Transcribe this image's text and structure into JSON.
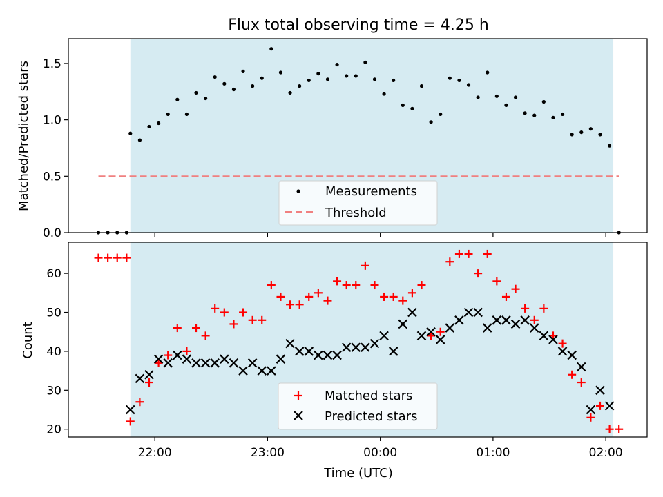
{
  "chart_data": [
    {
      "type": "scatter",
      "title": "Flux total observing time = 4.25 h",
      "ylabel": "Matched/Predicted stars",
      "xlabel": "",
      "xlim": [
        "21:14",
        "02:22"
      ],
      "ylim": [
        0,
        1.72
      ],
      "yticks": [
        "0.0",
        "0.5",
        "1.0",
        "1.5"
      ],
      "x_tick_labels": [],
      "observing_window": [
        "21:47",
        "02:04"
      ],
      "threshold": 0.5,
      "series": [
        {
          "name": "Measurements",
          "x": [
            "21:30",
            "21:35",
            "21:40",
            "21:45",
            "21:47",
            "21:52",
            "21:57",
            "22:02",
            "22:07",
            "22:12",
            "22:17",
            "22:22",
            "22:27",
            "22:32",
            "22:37",
            "22:42",
            "22:47",
            "22:52",
            "22:57",
            "23:02",
            "23:07",
            "23:12",
            "23:17",
            "23:22",
            "23:27",
            "23:32",
            "23:37",
            "23:42",
            "23:47",
            "23:52",
            "23:57",
            "00:02",
            "00:07",
            "00:12",
            "00:17",
            "00:22",
            "00:27",
            "00:32",
            "00:37",
            "00:42",
            "00:47",
            "00:52",
            "00:57",
            "01:02",
            "01:07",
            "01:12",
            "01:17",
            "01:22",
            "01:27",
            "01:32",
            "01:37",
            "01:42",
            "01:47",
            "01:52",
            "01:57",
            "02:02",
            "02:07"
          ],
          "y": [
            0,
            0,
            0,
            0,
            0.88,
            0.82,
            0.94,
            0.97,
            1.05,
            1.18,
            1.05,
            1.24,
            1.19,
            1.38,
            1.32,
            1.27,
            1.43,
            1.3,
            1.37,
            1.63,
            1.42,
            1.24,
            1.3,
            1.35,
            1.41,
            1.36,
            1.49,
            1.39,
            1.39,
            1.51,
            1.36,
            1.23,
            1.35,
            1.13,
            1.1,
            1.3,
            0.98,
            1.05,
            1.37,
            1.35,
            1.31,
            1.2,
            1.42,
            1.21,
            1.13,
            1.2,
            1.06,
            1.04,
            1.16,
            1.02,
            1.05,
            0.87,
            0.89,
            0.92,
            0.87,
            0.77,
            0
          ]
        }
      ],
      "threshold_series": {
        "name": "Threshold",
        "x": [
          "21:30",
          "02:07"
        ],
        "y": [
          0.5,
          0.5
        ]
      },
      "legend": "bottom-center",
      "colors": {
        "points": "#000000",
        "threshold": "#f08080",
        "window": "#add8e6"
      }
    },
    {
      "type": "scatter",
      "title": "",
      "xlabel": "Time (UTC)",
      "ylabel": "Count",
      "xlim": [
        "21:14",
        "02:22"
      ],
      "ylim": [
        18,
        68
      ],
      "yticks": [
        "20",
        "30",
        "40",
        "50",
        "60"
      ],
      "x_tick_labels": [
        "22:00",
        "23:00",
        "00:00",
        "01:00",
        "02:00"
      ],
      "observing_window": [
        "21:47",
        "02:04"
      ],
      "series": [
        {
          "name": "Matched stars",
          "marker": "plus",
          "x": [
            "21:30",
            "21:35",
            "21:40",
            "21:45",
            "21:47",
            "21:52",
            "21:57",
            "22:02",
            "22:07",
            "22:12",
            "22:17",
            "22:22",
            "22:27",
            "22:32",
            "22:37",
            "22:42",
            "22:47",
            "22:52",
            "22:57",
            "23:02",
            "23:07",
            "23:12",
            "23:17",
            "23:22",
            "23:27",
            "23:32",
            "23:37",
            "23:42",
            "23:47",
            "23:52",
            "23:57",
            "00:02",
            "00:07",
            "00:12",
            "00:17",
            "00:22",
            "00:27",
            "00:32",
            "00:37",
            "00:42",
            "00:47",
            "00:52",
            "00:57",
            "01:02",
            "01:07",
            "01:12",
            "01:17",
            "01:22",
            "01:27",
            "01:32",
            "01:37",
            "01:42",
            "01:47",
            "01:52",
            "01:57",
            "02:02",
            "02:07"
          ],
          "y": [
            64,
            64,
            64,
            64,
            22,
            27,
            32,
            37,
            39,
            46,
            40,
            46,
            44,
            51,
            50,
            47,
            50,
            48,
            48,
            57,
            54,
            52,
            52,
            54,
            55,
            53,
            58,
            57,
            57,
            62,
            57,
            54,
            54,
            53,
            55,
            57,
            44,
            45,
            63,
            65,
            65,
            60,
            65,
            58,
            54,
            56,
            51,
            48,
            51,
            44,
            42,
            34,
            32,
            23,
            26,
            20,
            20
          ]
        },
        {
          "name": "Predicted stars",
          "marker": "x",
          "x": [
            "21:47",
            "21:52",
            "21:57",
            "22:02",
            "22:07",
            "22:12",
            "22:17",
            "22:22",
            "22:27",
            "22:32",
            "22:37",
            "22:42",
            "22:47",
            "22:52",
            "22:57",
            "23:02",
            "23:07",
            "23:12",
            "23:17",
            "23:22",
            "23:27",
            "23:32",
            "23:37",
            "23:42",
            "23:47",
            "23:52",
            "23:57",
            "00:02",
            "00:07",
            "00:12",
            "00:17",
            "00:22",
            "00:27",
            "00:32",
            "00:37",
            "00:42",
            "00:47",
            "00:52",
            "00:57",
            "01:02",
            "01:07",
            "01:12",
            "01:17",
            "01:22",
            "01:27",
            "01:32",
            "01:37",
            "01:42",
            "01:47",
            "01:52",
            "01:57",
            "02:02"
          ],
          "y": [
            25,
            33,
            34,
            38,
            37,
            39,
            38,
            37,
            37,
            37,
            38,
            37,
            35,
            37,
            35,
            35,
            38,
            42,
            40,
            40,
            39,
            39,
            39,
            41,
            41,
            41,
            42,
            44,
            40,
            47,
            50,
            44,
            45,
            43,
            46,
            48,
            50,
            50,
            46,
            48,
            48,
            47,
            48,
            46,
            44,
            43,
            40,
            39,
            36,
            25,
            30,
            26
          ]
        }
      ],
      "legend": "bottom-center",
      "colors": {
        "matched": "#ff0000",
        "predicted": "#000000",
        "window": "#add8e6"
      }
    }
  ]
}
